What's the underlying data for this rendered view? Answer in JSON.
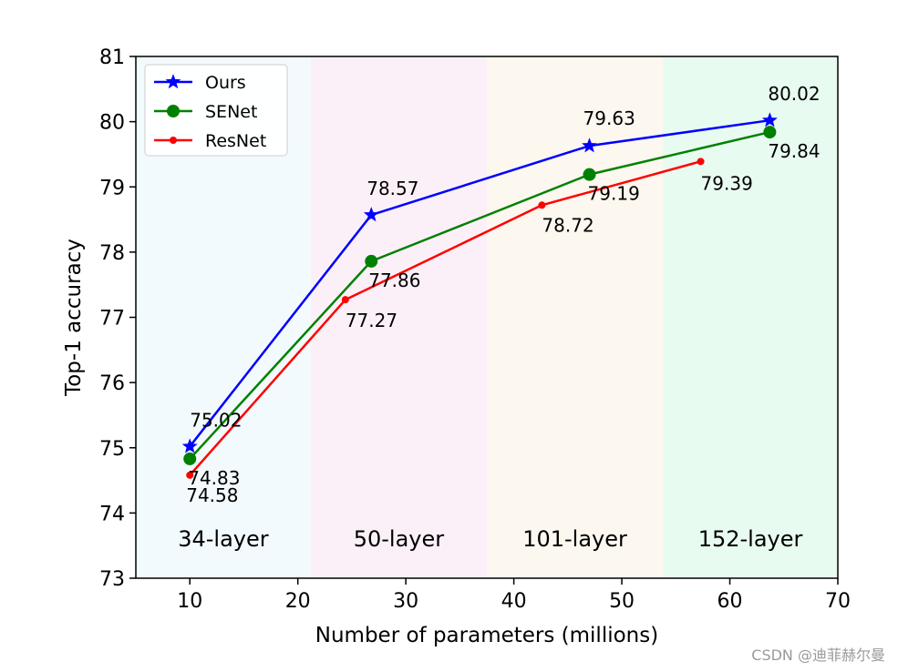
{
  "chart_data": {
    "type": "line",
    "title": "",
    "xlabel": "Number of parameters (millions)",
    "ylabel": "Top-1 accuracy",
    "xlim": [
      5,
      70
    ],
    "ylim": [
      73,
      81
    ],
    "xticks": [
      10,
      20,
      30,
      40,
      50,
      60,
      70
    ],
    "yticks": [
      73,
      74,
      75,
      76,
      77,
      78,
      79,
      80,
      81
    ],
    "grid": false,
    "legend": "top-left",
    "bands": [
      {
        "label": "34-layer",
        "x0": 5,
        "x1": 21.2,
        "color": "#f3fafd"
      },
      {
        "label": "50-layer",
        "x0": 21.2,
        "x1": 37.5,
        "color": "#fcf0f8"
      },
      {
        "label": "101-layer",
        "x0": 37.5,
        "x1": 53.8,
        "color": "#fcf7ef"
      },
      {
        "label": "152-layer",
        "x0": 53.8,
        "x1": 70,
        "color": "#e8fbf1"
      }
    ],
    "series": [
      {
        "name": "Ours",
        "color": "#0000ff",
        "marker": "star",
        "x": [
          10,
          26.8,
          47,
          63.7
        ],
        "y": [
          75.02,
          78.57,
          79.63,
          80.02
        ],
        "labels": [
          "75.02",
          "78.57",
          "79.63",
          "80.02"
        ]
      },
      {
        "name": "SENet",
        "color": "#008000",
        "marker": "circle",
        "x": [
          10,
          26.8,
          47,
          63.7
        ],
        "y": [
          74.83,
          77.86,
          79.19,
          79.84
        ],
        "labels": [
          "74.83",
          "77.86",
          "79.19",
          "79.84"
        ]
      },
      {
        "name": "ResNet",
        "color": "#ff0000",
        "marker": "dot",
        "x": [
          10,
          24.4,
          42.6,
          57.3
        ],
        "y": [
          74.58,
          77.27,
          78.72,
          79.39
        ],
        "labels": [
          "74.58",
          "77.27",
          "78.72",
          "79.39"
        ]
      }
    ]
  },
  "watermark": "CSDN @迪菲赫尔曼"
}
